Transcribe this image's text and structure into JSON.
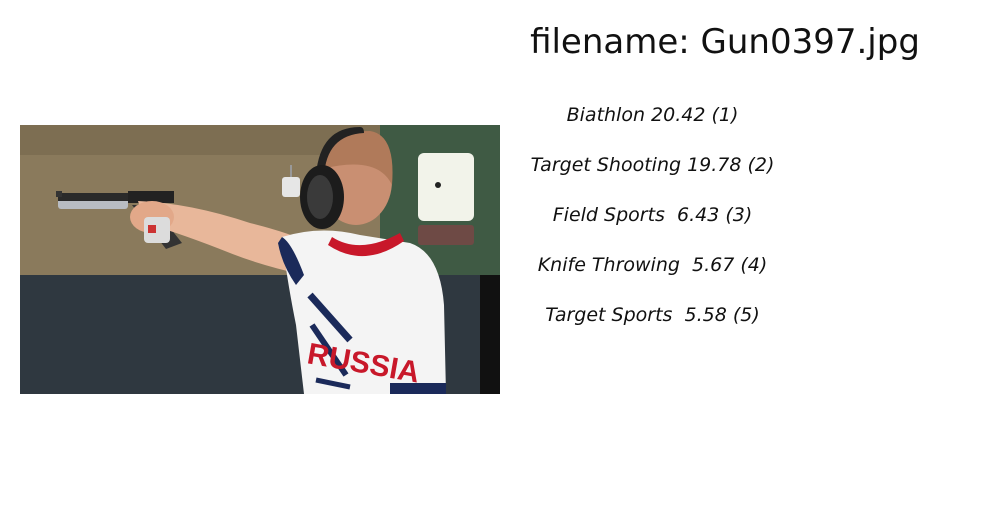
{
  "filename_text": "filename: Gun0397.jpg",
  "predictions": [
    {
      "text": "Biathlon 20.42 (1)"
    },
    {
      "text": "Target Shooting 19.78 (2)"
    },
    {
      "text": "Field Sports  6.43 (3)"
    },
    {
      "text": "Knife Throwing  5.67 (4)"
    },
    {
      "text": "Target Sports  5.58 (5)"
    }
  ],
  "photo_jersey_text": "RUSSIA"
}
